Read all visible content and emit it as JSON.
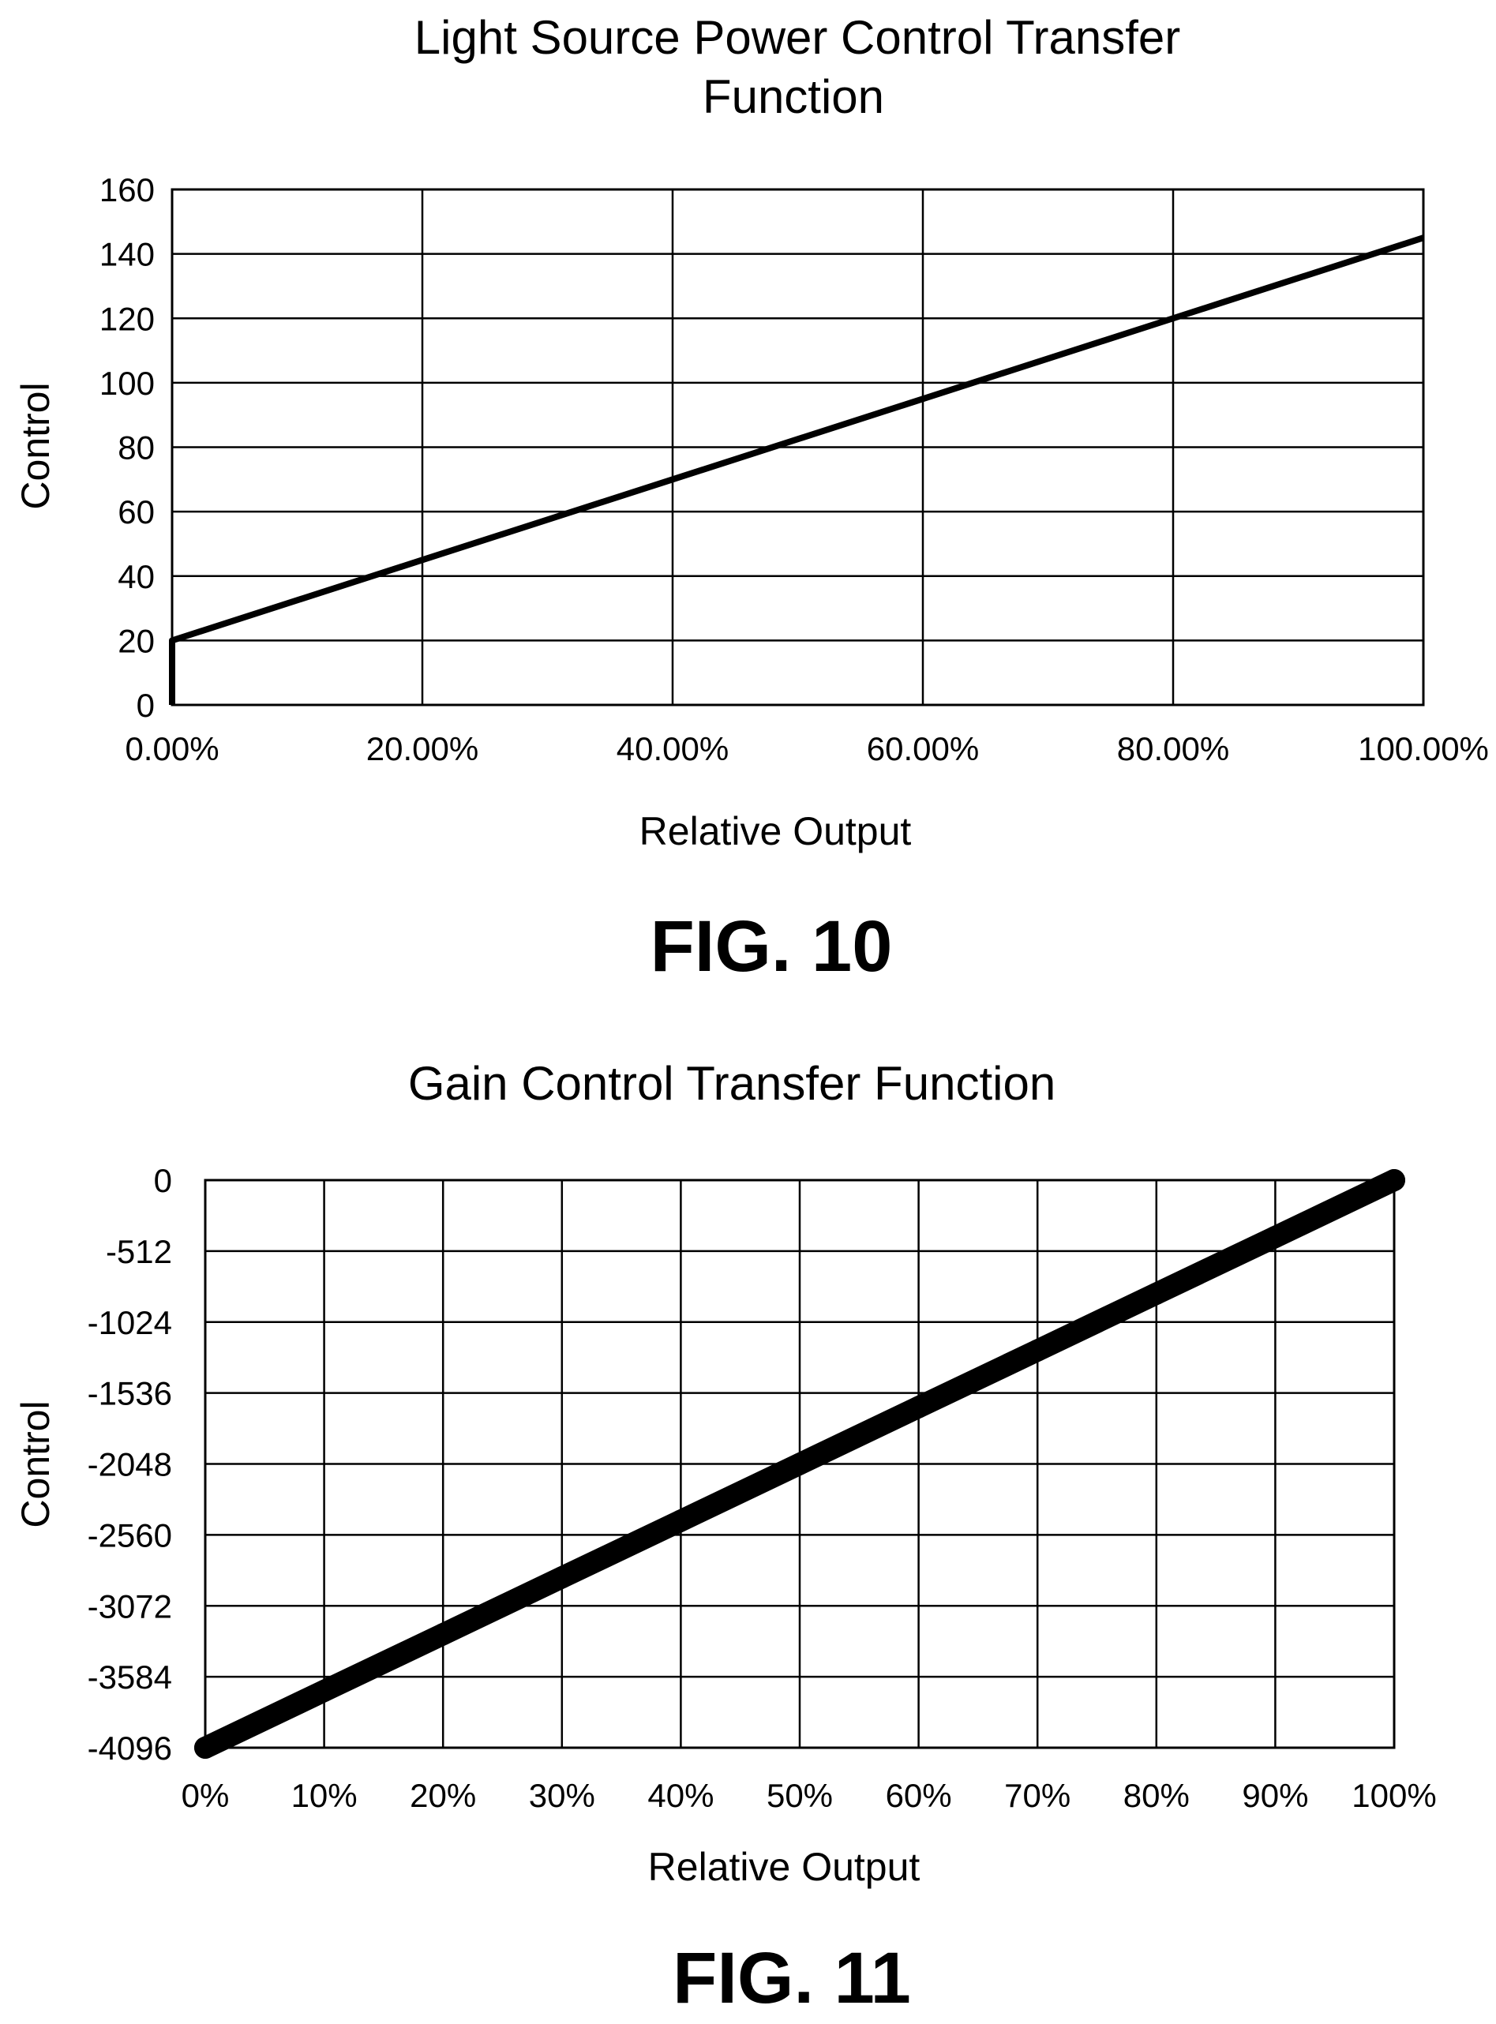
{
  "figures": [
    {
      "label": "FIG. 10"
    },
    {
      "label": "FIG. 11"
    }
  ],
  "colors": {
    "ink": "#000000",
    "background": "#ffffff"
  },
  "chart_data": [
    {
      "type": "line",
      "title": "Light Source Power Control Transfer",
      "title_line2": "Function",
      "xlabel": "Relative Output",
      "ylabel": "Control",
      "xlim": [
        0,
        1
      ],
      "ylim": [
        0,
        160
      ],
      "x_ticks": [
        0,
        0.2,
        0.4,
        0.6,
        0.8,
        1.0
      ],
      "x_tick_labels": [
        "0.00%",
        "20.00%",
        "40.00%",
        "60.00%",
        "80.00%",
        "100.00%"
      ],
      "y_ticks": [
        0,
        20,
        40,
        60,
        80,
        100,
        120,
        140,
        160
      ],
      "y_tick_labels": [
        "0",
        "20",
        "40",
        "60",
        "80",
        "100",
        "120",
        "140",
        "160"
      ],
      "grid": true,
      "series": [
        {
          "x": [
            0,
            0,
            0.2,
            0.4,
            0.6,
            0.8,
            1.0
          ],
          "y": [
            0,
            20,
            45,
            70,
            95,
            120,
            145
          ]
        }
      ]
    },
    {
      "type": "scatter",
      "title": "Gain Control Transfer Function",
      "xlabel": "Relative Output",
      "ylabel": "Control",
      "xlim": [
        0,
        1
      ],
      "ylim": [
        -4096,
        0
      ],
      "x_ticks": [
        0,
        0.1,
        0.2,
        0.3,
        0.4,
        0.5,
        0.6,
        0.7,
        0.8,
        0.9,
        1.0
      ],
      "x_tick_labels": [
        "0%",
        "10%",
        "20%",
        "30%",
        "40%",
        "50%",
        "60%",
        "70%",
        "80%",
        "90%",
        "100%"
      ],
      "y_ticks": [
        0,
        -512,
        -1024,
        -1536,
        -2048,
        -2560,
        -3072,
        -3584,
        -4096
      ],
      "y_tick_labels": [
        "0",
        "-512",
        "-1024",
        "-1536",
        "-2048",
        "-2560",
        "-3072",
        "-3584",
        "-4096"
      ],
      "grid": true,
      "series": [
        {
          "x": [
            0,
            0.1,
            0.2,
            0.3,
            0.4,
            0.5,
            0.6,
            0.7,
            0.8,
            0.9,
            1.0
          ],
          "y": [
            -4096,
            -3686,
            -3277,
            -2867,
            -2458,
            -2048,
            -1638,
            -1229,
            -819,
            -410,
            0
          ]
        }
      ]
    }
  ]
}
